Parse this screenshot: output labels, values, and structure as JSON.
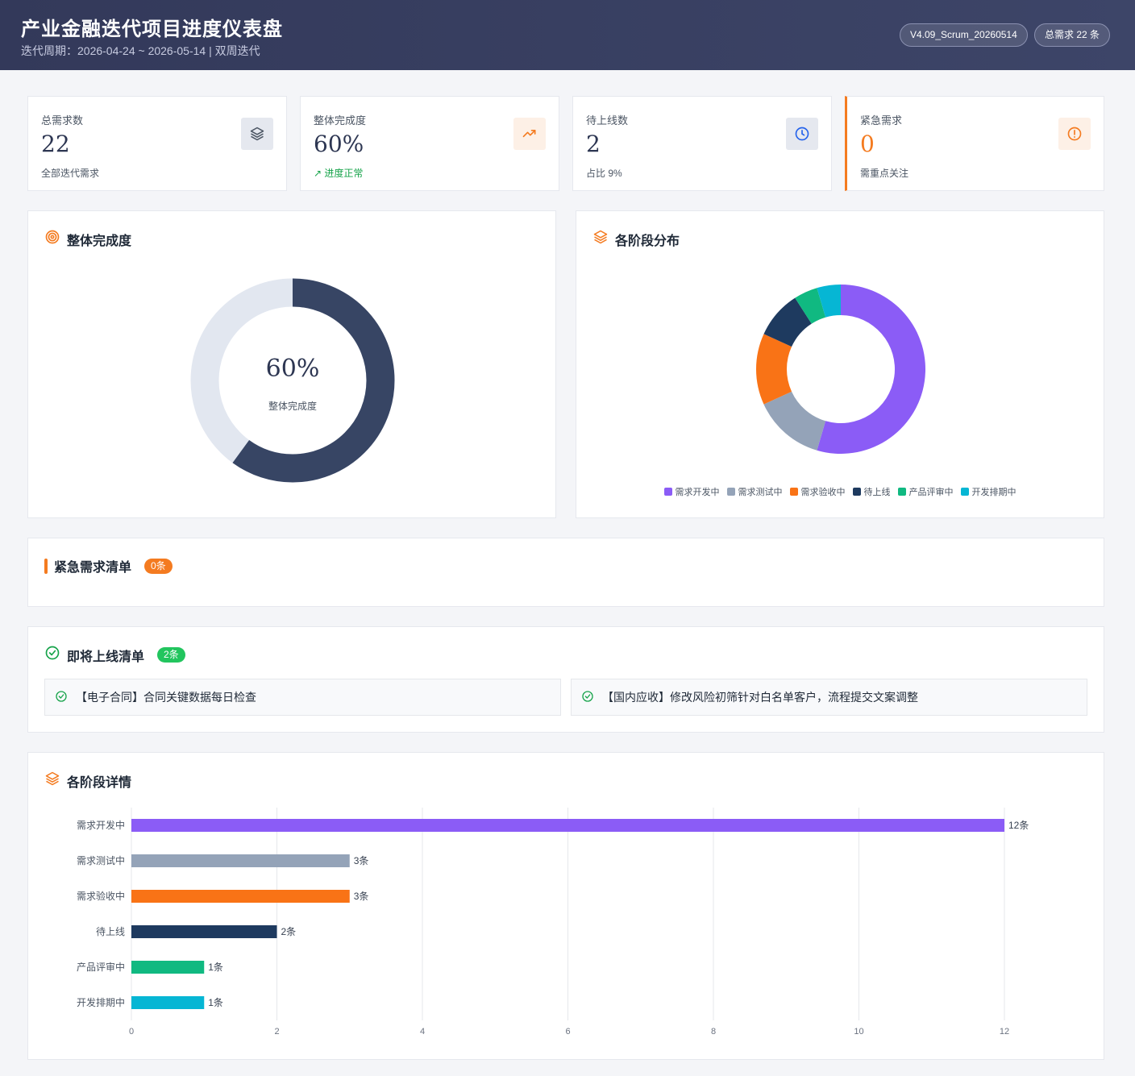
{
  "header": {
    "title": "产业金融迭代项目进度仪表盘",
    "subtitle": "迭代周期：2026-04-24 ~ 2026-05-14 | 双周迭代",
    "version_pill": "V4.09_Scrum_20260514",
    "total_pill": "总需求 22 条"
  },
  "stats": {
    "total": {
      "label": "总需求数",
      "value": "22",
      "note": "全部迭代需求",
      "icon": "layers-icon"
    },
    "completion": {
      "label": "整体完成度",
      "value": "60%",
      "note": "进度正常",
      "note_icon": "↗",
      "icon": "trend-up-icon"
    },
    "pending": {
      "label": "待上线数",
      "value": "2",
      "note": "占比 9%",
      "icon": "clock-icon"
    },
    "urgent": {
      "label": "紧急需求",
      "value": "0",
      "note": "需重点关注",
      "icon": "alert-icon"
    }
  },
  "completion_panel": {
    "title": "整体完成度",
    "center_value": "60%",
    "center_label": "整体完成度",
    "percent": 60,
    "colors": {
      "fill": "#374564",
      "track": "#e2e7f0"
    }
  },
  "distribution_panel": {
    "title": "各阶段分布"
  },
  "urgent_panel": {
    "title": "紧急需求清单",
    "badge": "0条"
  },
  "launch_panel": {
    "title": "即将上线清单",
    "badge": "2条",
    "items": [
      "【电子合同】合同关键数据每日检查",
      "【国内应收】修改风险初筛针对白名单客户，流程提交文案调整"
    ]
  },
  "detail_panel": {
    "title": "各阶段详情"
  },
  "chart_data": [
    {
      "type": "pie",
      "donut": true,
      "categories": [
        "需求开发中",
        "需求测试中",
        "需求验收中",
        "待上线",
        "产品评审中",
        "开发排期中"
      ],
      "values": [
        12,
        3,
        3,
        2,
        1,
        1
      ],
      "colors": [
        "#8b5cf6",
        "#94a3b8",
        "#f97316",
        "#1e3a5f",
        "#10b981",
        "#06b6d4"
      ],
      "legend": "bottom"
    },
    {
      "type": "bar",
      "orientation": "horizontal",
      "categories": [
        "需求开发中",
        "需求测试中",
        "需求验收中",
        "待上线",
        "产品评审中",
        "开发排期中"
      ],
      "values": [
        12,
        3,
        3,
        2,
        1,
        1
      ],
      "value_labels": [
        "12条",
        "3条",
        "3条",
        "2条",
        "1条",
        "1条"
      ],
      "colors": [
        "#8b5cf6",
        "#94a3b8",
        "#f97316",
        "#1e3a5f",
        "#10b981",
        "#06b6d4"
      ],
      "xlim": [
        0,
        12
      ],
      "xticks": [
        "0",
        "2",
        "4",
        "6",
        "8",
        "10",
        "12"
      ],
      "grid": true
    }
  ]
}
